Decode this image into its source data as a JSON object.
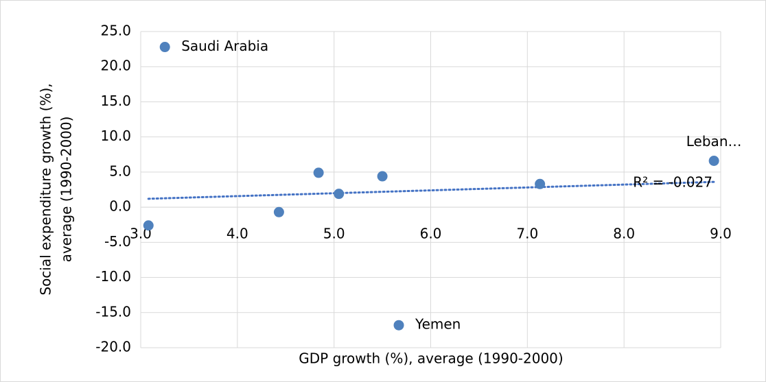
{
  "chart_data": {
    "type": "scatter",
    "x_label": "GDP growth (%), average (1990-2000)",
    "y_label": [
      "Social expenditure growth (%),",
      "average (1990-2000)"
    ],
    "x": [
      3.25,
      3.08,
      4.43,
      4.84,
      5.05,
      5.5,
      5.67,
      7.13,
      8.93
    ],
    "y": [
      22.8,
      -2.6,
      -0.7,
      4.9,
      1.9,
      4.4,
      -16.8,
      3.3,
      6.6
    ],
    "labels": [
      "Saudi Arabia",
      null,
      null,
      null,
      null,
      null,
      "Yemen",
      null,
      "Leban…"
    ],
    "color": "#4f81bd",
    "trendline": {
      "x": [
        3.08,
        8.93
      ],
      "y": [
        1.2,
        3.6
      ],
      "color": "#4472c4",
      "label": "R² = -0.027"
    },
    "xlim": [
      3,
      9
    ],
    "ylim": [
      -20,
      25
    ],
    "xticks": [
      {
        "value": 3,
        "label": "3.0"
      },
      {
        "value": 4,
        "label": "4.0"
      },
      {
        "value": 5,
        "label": "5.0"
      },
      {
        "value": 6,
        "label": "6.0"
      },
      {
        "value": 7,
        "label": "7.0"
      },
      {
        "value": 8,
        "label": "8.0"
      },
      {
        "value": 9,
        "label": "9.0"
      }
    ],
    "yticks": [
      {
        "value": -20,
        "label": "-20.0"
      },
      {
        "value": -15,
        "label": "-15.0"
      },
      {
        "value": -10,
        "label": "-10.0"
      },
      {
        "value": -5,
        "label": "-5.0"
      },
      {
        "value": 0,
        "label": "0.0"
      },
      {
        "value": 5,
        "label": "5.0"
      },
      {
        "value": 10,
        "label": "10.0"
      },
      {
        "value": 15,
        "label": "15.0"
      },
      {
        "value": 20,
        "label": "20.0"
      },
      {
        "value": 25,
        "label": "25.0"
      }
    ],
    "grid": true
  }
}
